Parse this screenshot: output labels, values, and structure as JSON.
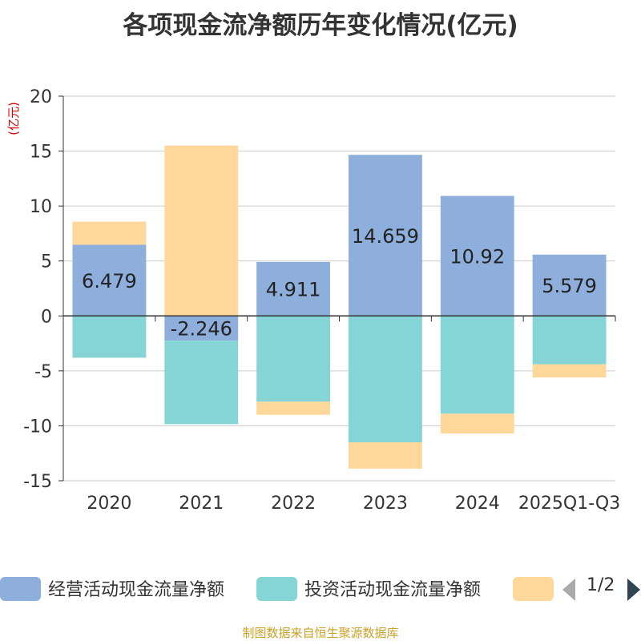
{
  "chart_data": {
    "type": "bar",
    "stacked": true,
    "title": "各项现金流净额历年变化情况(亿元)",
    "ylabel": "(亿元)",
    "categories": [
      "2020",
      "2021",
      "2022",
      "2023",
      "2024",
      "2025Q1-Q3"
    ],
    "ylim": [
      -15,
      20
    ],
    "yticks": [
      20,
      15,
      10,
      5,
      0,
      -5,
      -10,
      -15
    ],
    "grid": true,
    "series": [
      {
        "name": "经营活动现金流量净额",
        "color": "#8eaedb",
        "values": [
          6.479,
          -2.246,
          4.911,
          14.659,
          10.92,
          5.579
        ],
        "labels": [
          "6.479",
          "-2.246",
          "4.911",
          "14.659",
          "10.92",
          "5.579"
        ]
      },
      {
        "name": "投资活动现金流量净额",
        "color": "#86d5d6",
        "values": [
          -3.8,
          -7.6,
          -7.8,
          -11.5,
          -8.9,
          -4.4
        ]
      },
      {
        "name": "",
        "color": "#fdd89a",
        "values": [
          2.1,
          15.5,
          -1.2,
          -2.4,
          -1.8,
          -1.2
        ]
      }
    ],
    "legend_position": "bottom"
  },
  "legend": {
    "items": [
      {
        "label": "经营活动现金流量净额",
        "color": "#8eaedb"
      },
      {
        "label": "投资活动现金流量净额",
        "color": "#86d5d6"
      },
      {
        "label": "",
        "color": "#fdd89a"
      }
    ],
    "page_indicator": "1/2"
  },
  "source": "制图数据来自恒生聚源数据库"
}
